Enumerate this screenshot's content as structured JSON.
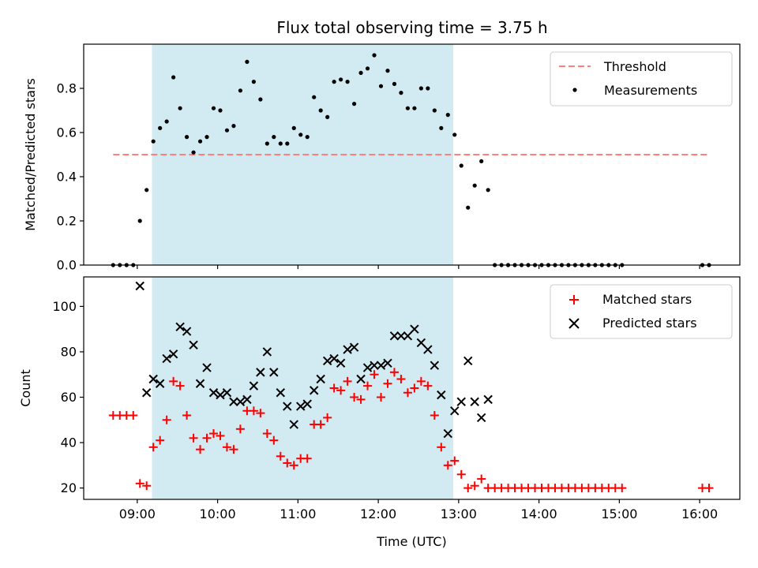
{
  "title": "Flux total observing time = 3.75 h",
  "colors": {
    "threshold": "#ff7f7f",
    "measurement": "#000000",
    "matched": "#ff0000",
    "predicted": "#000000",
    "shade": "#add8e6"
  },
  "chart_data": [
    {
      "type": "scatter",
      "panel": "top",
      "ylabel": "Matched/Predicted stars",
      "ylim": [
        0,
        1.0
      ],
      "yticks": [
        0.0,
        0.2,
        0.4,
        0.6,
        0.8
      ],
      "ytick_labels": [
        "0.0",
        "0.2",
        "0.4",
        "0.6",
        "0.8"
      ],
      "shaded_span": [
        "09:11",
        "12:56"
      ],
      "threshold": {
        "name": "Threshold",
        "y": 0.5,
        "x_range": [
          "08:42",
          "16:06"
        ],
        "style": "dashed"
      },
      "legend": [
        "Threshold",
        "Measurements"
      ],
      "legend_position": "top-right",
      "series": [
        {
          "name": "Measurements",
          "marker": "dot",
          "x": [
            "08:42",
            "08:47",
            "08:52",
            "08:57",
            "09:02",
            "09:07",
            "09:12",
            "09:17",
            "09:22",
            "09:27",
            "09:32",
            "09:37",
            "09:42",
            "09:47",
            "09:52",
            "09:57",
            "10:02",
            "10:07",
            "10:12",
            "10:17",
            "10:22",
            "10:27",
            "10:32",
            "10:37",
            "10:42",
            "10:47",
            "10:52",
            "10:57",
            "11:02",
            "11:07",
            "11:12",
            "11:17",
            "11:22",
            "11:27",
            "11:32",
            "11:37",
            "11:42",
            "11:47",
            "11:52",
            "11:57",
            "12:02",
            "12:07",
            "12:12",
            "12:17",
            "12:22",
            "12:27",
            "12:32",
            "12:37",
            "12:42",
            "12:47",
            "12:52",
            "12:57",
            "13:02",
            "13:07",
            "13:12",
            "13:17",
            "13:22",
            "13:27",
            "13:32",
            "13:37",
            "13:42",
            "13:47",
            "13:52",
            "13:57",
            "14:02",
            "14:07",
            "14:12",
            "14:17",
            "14:22",
            "14:27",
            "14:32",
            "14:37",
            "14:42",
            "14:47",
            "14:52",
            "14:57",
            "15:02",
            "16:02",
            "16:07"
          ],
          "values": [
            0,
            0,
            0,
            0,
            0.2,
            0.34,
            0.56,
            0.62,
            0.65,
            0.85,
            0.71,
            0.58,
            0.51,
            0.56,
            0.58,
            0.71,
            0.7,
            0.61,
            0.63,
            0.79,
            0.92,
            0.83,
            0.75,
            0.55,
            0.58,
            0.55,
            0.55,
            0.62,
            0.59,
            0.58,
            0.76,
            0.7,
            0.67,
            0.83,
            0.84,
            0.83,
            0.73,
            0.87,
            0.89,
            0.95,
            0.81,
            0.88,
            0.82,
            0.78,
            0.71,
            0.71,
            0.8,
            0.8,
            0.7,
            0.62,
            0.68,
            0.59,
            0.45,
            0.26,
            0.36,
            0.47,
            0.34,
            0,
            0,
            0,
            0,
            0,
            0,
            0,
            0,
            0,
            0,
            0,
            0,
            0,
            0,
            0,
            0,
            0,
            0,
            0,
            0,
            0,
            0
          ]
        }
      ]
    },
    {
      "type": "scatter",
      "panel": "bottom",
      "xlabel": "Time (UTC)",
      "ylabel": "Count",
      "ylim": [
        15,
        113
      ],
      "yticks": [
        20,
        40,
        60,
        80,
        100
      ],
      "ytick_labels": [
        "20",
        "40",
        "60",
        "80",
        "100"
      ],
      "xticks": [
        "09:00",
        "10:00",
        "11:00",
        "12:00",
        "13:00",
        "14:00",
        "15:00",
        "16:00"
      ],
      "xtick_labels": [
        "09:00",
        "10:00",
        "11:00",
        "12:00",
        "13:00",
        "14:00",
        "15:00",
        "16:00"
      ],
      "xlim": [
        "08:20",
        "16:30"
      ],
      "shaded_span": [
        "09:11",
        "12:56"
      ],
      "legend": [
        "Matched stars",
        "Predicted stars"
      ],
      "legend_position": "top-right",
      "series": [
        {
          "name": "Matched stars",
          "marker": "plus",
          "x": [
            "08:42",
            "08:47",
            "08:52",
            "08:57",
            "09:02",
            "09:07",
            "09:12",
            "09:17",
            "09:22",
            "09:27",
            "09:32",
            "09:37",
            "09:42",
            "09:47",
            "09:52",
            "09:57",
            "10:02",
            "10:07",
            "10:12",
            "10:17",
            "10:22",
            "10:27",
            "10:32",
            "10:37",
            "10:42",
            "10:47",
            "10:52",
            "10:57",
            "11:02",
            "11:07",
            "11:12",
            "11:17",
            "11:22",
            "11:27",
            "11:32",
            "11:37",
            "11:42",
            "11:47",
            "11:52",
            "11:57",
            "12:02",
            "12:07",
            "12:12",
            "12:17",
            "12:22",
            "12:27",
            "12:32",
            "12:37",
            "12:42",
            "12:47",
            "12:52",
            "12:57",
            "13:02",
            "13:07",
            "13:12",
            "13:17",
            "13:22",
            "13:27",
            "13:32",
            "13:37",
            "13:42",
            "13:47",
            "13:52",
            "13:57",
            "14:02",
            "14:07",
            "14:12",
            "14:17",
            "14:22",
            "14:27",
            "14:32",
            "14:37",
            "14:42",
            "14:47",
            "14:52",
            "14:57",
            "15:02",
            "16:02",
            "16:07"
          ],
          "values": [
            52,
            52,
            52,
            52,
            22,
            21,
            38,
            41,
            50,
            67,
            65,
            52,
            42,
            37,
            42,
            44,
            43,
            38,
            37,
            46,
            54,
            54,
            53,
            44,
            41,
            34,
            31,
            30,
            33,
            33,
            48,
            48,
            51,
            64,
            63,
            67,
            60,
            59,
            65,
            70,
            60,
            66,
            71,
            68,
            62,
            64,
            67,
            65,
            52,
            38,
            30,
            32,
            26,
            20,
            21,
            24,
            20,
            20,
            20,
            20,
            20,
            20,
            20,
            20,
            20,
            20,
            20,
            20,
            20,
            20,
            20,
            20,
            20,
            20,
            20,
            20,
            20,
            20,
            20
          ]
        },
        {
          "name": "Predicted stars",
          "marker": "x",
          "x": [
            "09:02",
            "09:07",
            "09:12",
            "09:17",
            "09:22",
            "09:27",
            "09:32",
            "09:37",
            "09:42",
            "09:47",
            "09:52",
            "09:57",
            "10:02",
            "10:07",
            "10:12",
            "10:17",
            "10:22",
            "10:27",
            "10:32",
            "10:37",
            "10:42",
            "10:47",
            "10:52",
            "10:57",
            "11:02",
            "11:07",
            "11:12",
            "11:17",
            "11:22",
            "11:27",
            "11:32",
            "11:37",
            "11:42",
            "11:47",
            "11:52",
            "11:57",
            "12:02",
            "12:07",
            "12:12",
            "12:17",
            "12:22",
            "12:27",
            "12:32",
            "12:37",
            "12:42",
            "12:47",
            "12:52",
            "12:57",
            "13:02",
            "13:07",
            "13:12",
            "13:17",
            "13:22"
          ],
          "values": [
            109,
            62,
            68,
            66,
            77,
            79,
            91,
            89,
            83,
            66,
            73,
            62,
            61,
            62,
            58,
            58,
            59,
            65,
            71,
            80,
            71,
            62,
            56,
            48,
            56,
            57,
            63,
            68,
            76,
            77,
            75,
            81,
            82,
            68,
            73,
            74,
            74,
            75,
            87,
            87,
            87,
            90,
            84,
            81,
            74,
            61,
            44,
            54,
            58,
            76,
            58,
            51,
            59
          ]
        }
      ]
    }
  ]
}
